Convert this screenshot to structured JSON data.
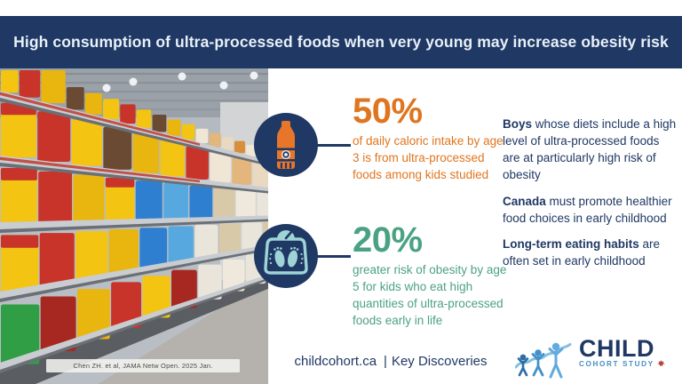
{
  "banner": {
    "title": "High consumption of ultra-processed foods when very young may increase obesity risk",
    "bg_color": "#1f3864"
  },
  "photo": {
    "description": "supermarket-snack-aisle-photo",
    "citation": "Chen ZH. et al, JAMA Netw Open. 2025 Jan."
  },
  "stats": [
    {
      "icon": "juice-bottle-icon",
      "value": "50%",
      "description": "of daily caloric intake by age 3 is from ultra-processed foods among kids studied",
      "accent_color": "#e0751f"
    },
    {
      "icon": "weigh-scale-icon",
      "value": "20%",
      "description": "greater risk of obesity by age 5 for kids who eat high quantities of ultra-processed foods early in life",
      "accent_color": "#4ba283"
    }
  ],
  "key_points": [
    {
      "lead": "Boys",
      "text": " whose diets include a high level of  ultra-processed foods are at particularly high risk of obesity"
    },
    {
      "lead": "Canada",
      "text": " must promote healthier food choices in early childhood"
    },
    {
      "lead": "Long-term eating habits",
      "text": " are often set in early childhood"
    }
  ],
  "footer": {
    "website": "childcohort.ca",
    "separator": "|",
    "label": "Key Discoveries"
  },
  "logo": {
    "title": "CHILD",
    "subtitle": "COHORT STUDY"
  },
  "colors": {
    "navy": "#1f3864",
    "orange": "#e0751f",
    "green": "#4ba283",
    "scale_icon_teal": "#9ed4d6",
    "logo_blue": "#4390c9",
    "maple_leaf_red": "#b5413a"
  }
}
